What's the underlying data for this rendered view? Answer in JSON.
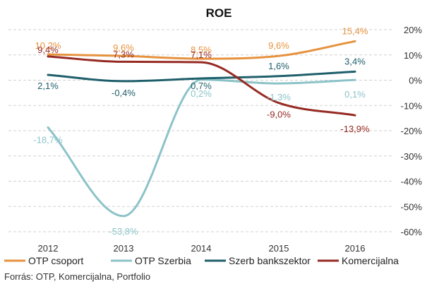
{
  "chart_data": {
    "type": "line",
    "title": "ROE",
    "categories": [
      "2012",
      "2013",
      "2014",
      "2015",
      "2016"
    ],
    "ylim": [
      -60,
      20
    ],
    "yticks": [
      20,
      10,
      0,
      -10,
      -20,
      -30,
      -40,
      -50,
      -60
    ],
    "ytick_labels": [
      "20%",
      "10%",
      "0%",
      "-10%",
      "-20%",
      "-30%",
      "-40%",
      "-50%",
      "-60%"
    ],
    "grid": true,
    "legend_position": "bottom",
    "series": [
      {
        "name": "OTP csoport",
        "color": "#E6923E",
        "values": [
          10.2,
          9.6,
          8.5,
          9.6,
          15.4
        ],
        "labels": [
          "10,2%",
          "9,6%",
          "8,5%",
          "9,6%",
          "15,4%"
        ]
      },
      {
        "name": "OTP Szerbia",
        "color": "#8CC3C8",
        "values": [
          -18.7,
          -53.8,
          0.2,
          -1.3,
          0.1
        ],
        "labels": [
          "-18,7%",
          "-53,8%",
          "0,2%",
          "-1,3%",
          "0,1%"
        ]
      },
      {
        "name": "Szerb bankszektor",
        "color": "#1F5F6B",
        "values": [
          2.1,
          -0.4,
          0.7,
          1.6,
          3.4
        ],
        "labels": [
          "2,1%",
          "-0,4%",
          "0,7%",
          "1,6%",
          "3,4%"
        ]
      },
      {
        "name": "Komercijalna",
        "color": "#962A22",
        "values": [
          9.4,
          7.3,
          7.1,
          -9.0,
          -13.9
        ],
        "labels": [
          "9,4%",
          "7,3%",
          "7,1%",
          "-9,0%",
          "-13,9%"
        ]
      }
    ]
  },
  "source": "Forrás: OTP, Komercijalna, Portfolio"
}
